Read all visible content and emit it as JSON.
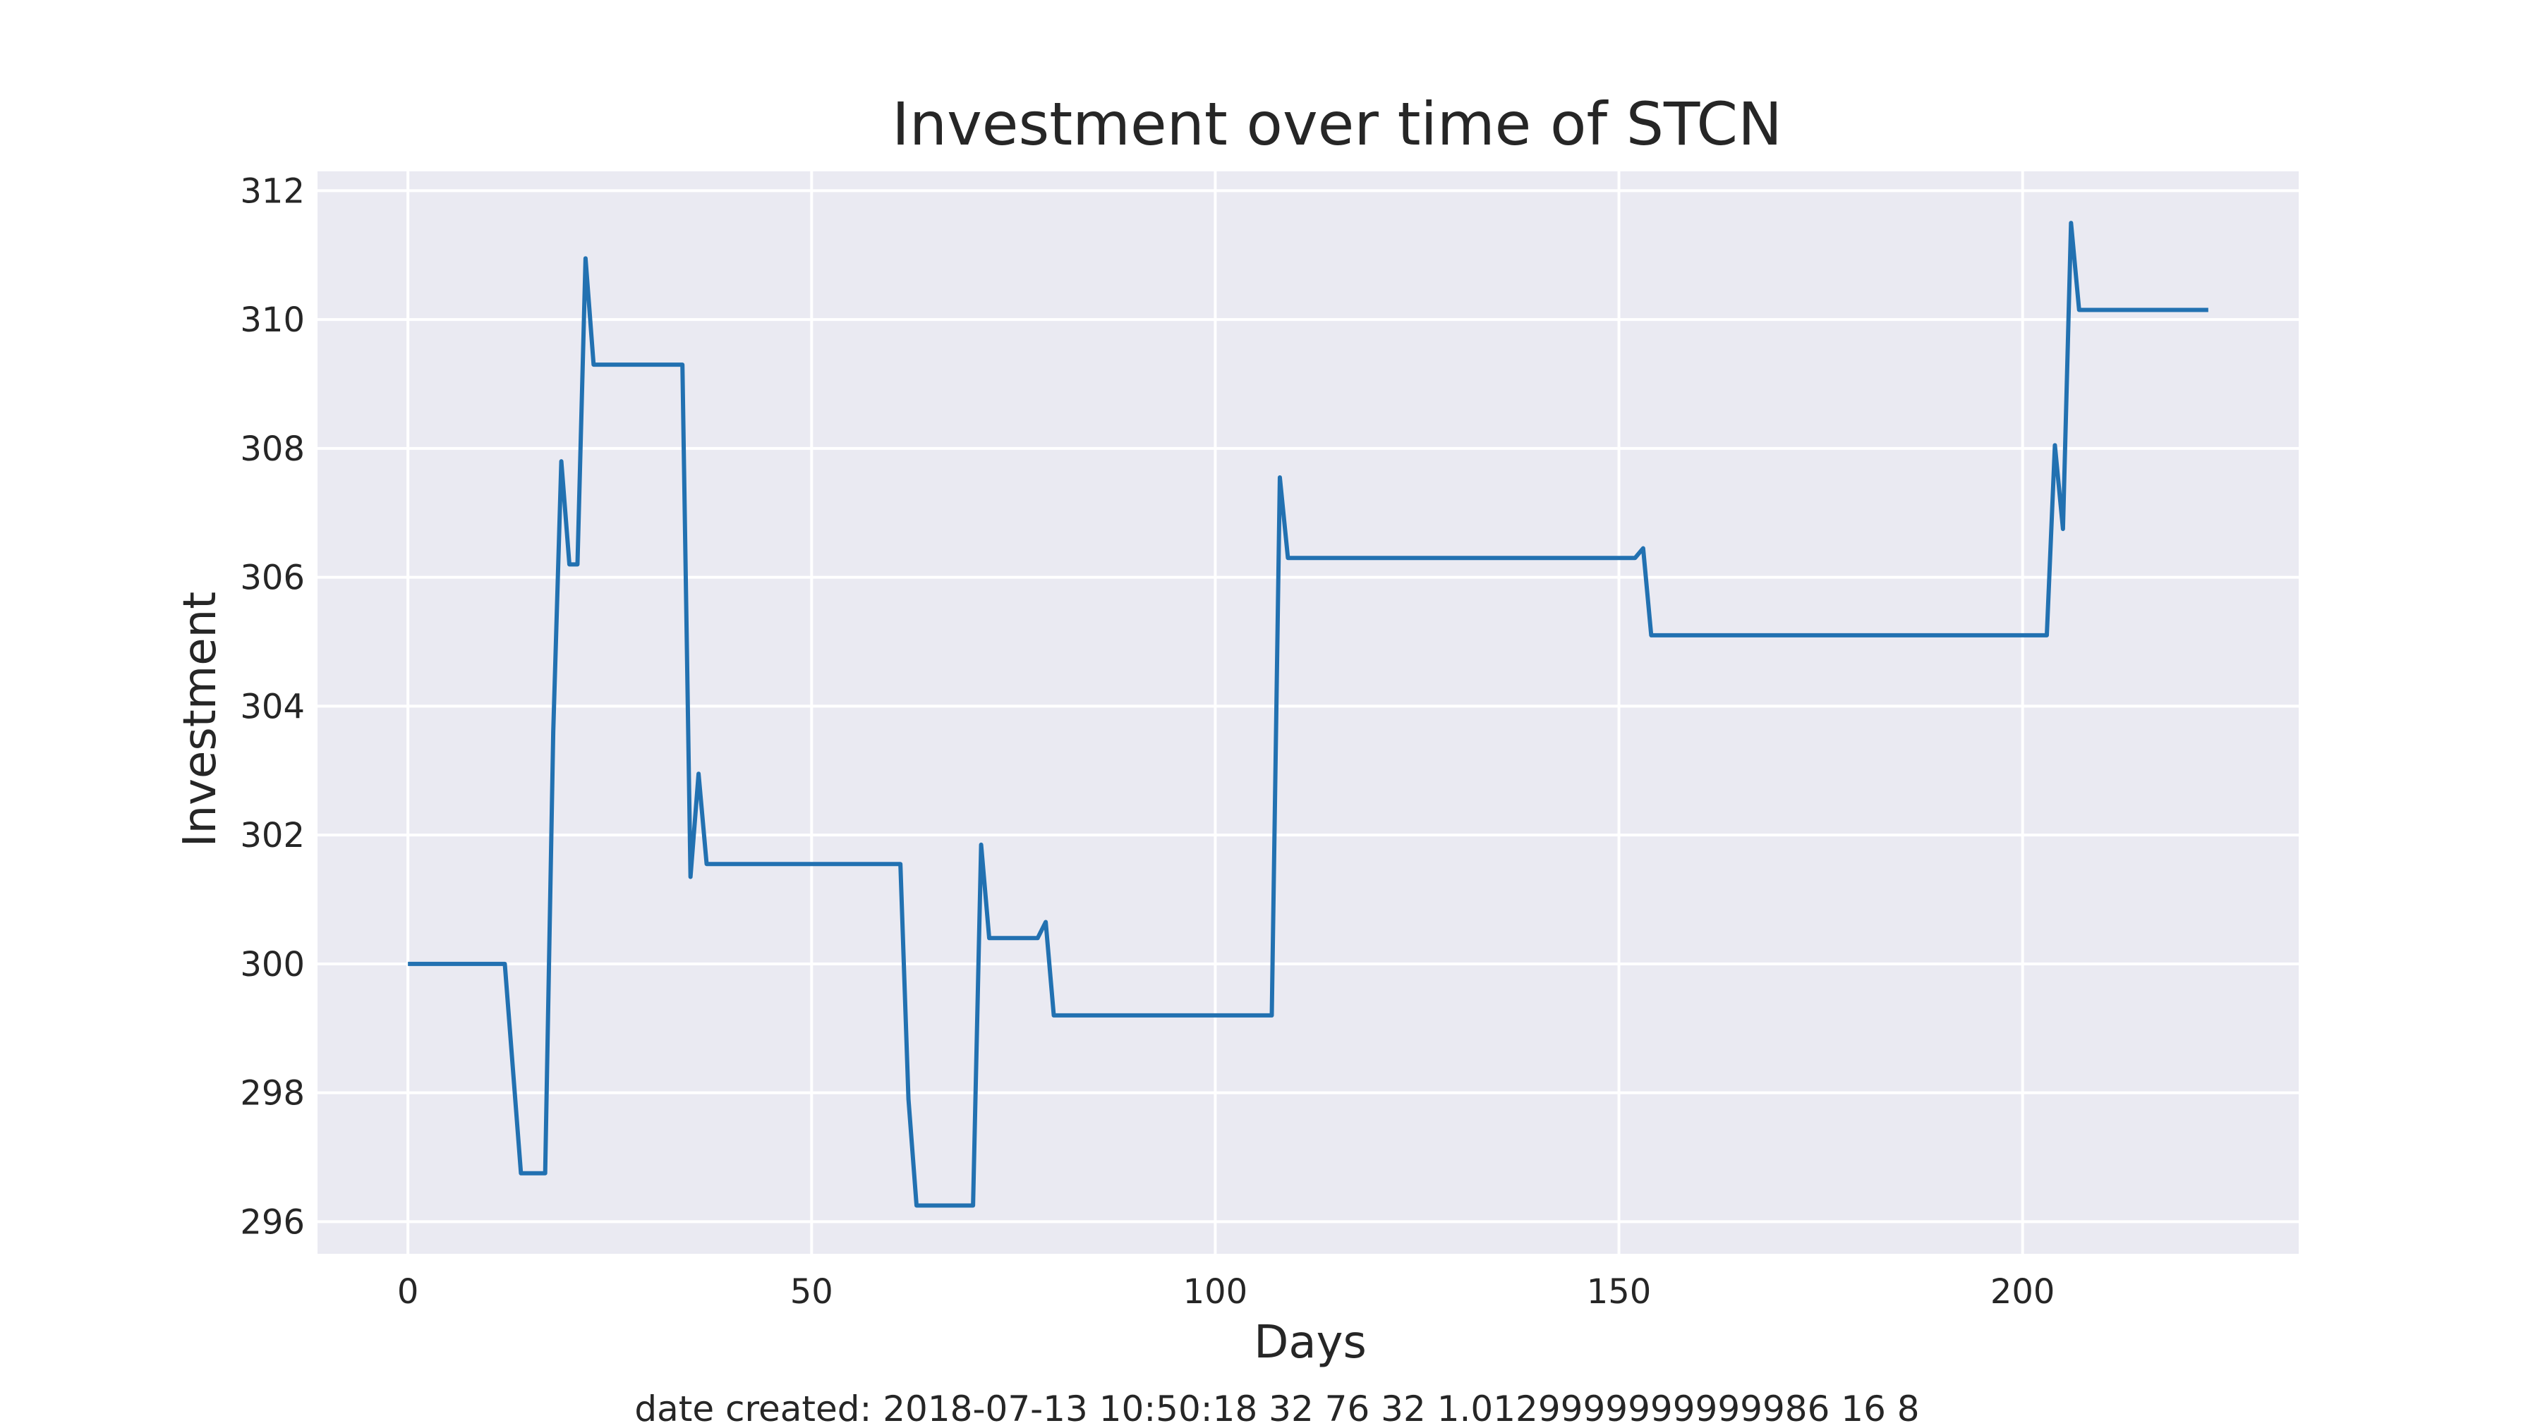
{
  "chart_data": {
    "type": "line",
    "title": "Investment over time of STCN",
    "xlabel": "Days",
    "ylabel": "Investment",
    "footer": "date created: 2018-07-13 10:50:18 32 76 32 1.0129999999999986 16 8",
    "xlim": [
      -11.2,
      234.2
    ],
    "ylim": [
      295.5,
      312.3
    ],
    "xticks": [
      0,
      50,
      100,
      150,
      200
    ],
    "yticks": [
      296,
      298,
      300,
      302,
      304,
      306,
      308,
      310,
      312
    ],
    "grid": true,
    "legend": "none",
    "colors": {
      "plot_background": "#eaeaf2",
      "grid": "#ffffff",
      "text": "#262626"
    },
    "series": [
      {
        "color": "#2271b1",
        "x": [
          0,
          12,
          14,
          17,
          18,
          19,
          20,
          21,
          22,
          23,
          34,
          35,
          36,
          37,
          61,
          62,
          63,
          70,
          71,
          72,
          78,
          79,
          80,
          107,
          108,
          109,
          152,
          153,
          154,
          203,
          204,
          205,
          206,
          207,
          223
        ],
        "y": [
          300.0,
          300.0,
          296.75,
          296.75,
          303.6,
          307.8,
          306.2,
          306.2,
          310.95,
          309.3,
          309.3,
          301.35,
          302.95,
          301.55,
          301.55,
          297.9,
          296.25,
          296.25,
          301.85,
          300.4,
          300.4,
          300.65,
          299.2,
          299.2,
          307.55,
          306.3,
          306.3,
          306.45,
          305.1,
          305.1,
          308.05,
          306.75,
          311.5,
          310.15,
          310.15
        ]
      }
    ]
  }
}
